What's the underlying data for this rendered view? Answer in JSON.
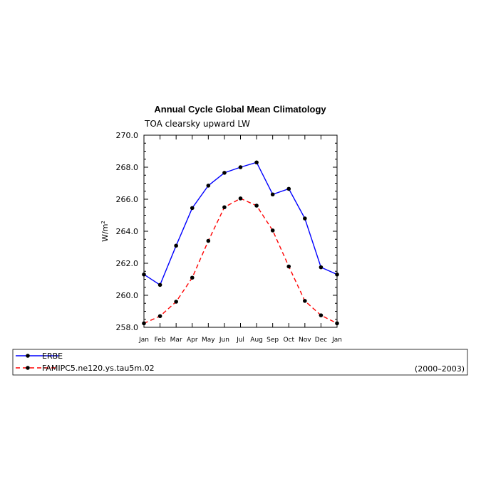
{
  "chart_data": {
    "type": "line",
    "title": "Annual Cycle Global Mean Climatology",
    "subtitle": "TOA clearsky upward LW",
    "ylabel": "W/m",
    "ylabel_sup": "2",
    "ylim": [
      258.0,
      270.0
    ],
    "yticks": [
      "258.0",
      "260.0",
      "262.0",
      "264.0",
      "266.0",
      "268.0",
      "270.0"
    ],
    "ytick_values": [
      258,
      260,
      262,
      264,
      266,
      268,
      270
    ],
    "categories": [
      "Jan",
      "Feb",
      "Mar",
      "Apr",
      "May",
      "Jun",
      "Jul",
      "Aug",
      "Sep",
      "Oct",
      "Nov",
      "Dec",
      "Jan"
    ],
    "series": [
      {
        "name": "ERBE",
        "color": "#0000ff",
        "dash": "solid",
        "values": [
          261.3,
          260.65,
          263.1,
          265.45,
          266.85,
          267.65,
          268.0,
          268.3,
          266.3,
          266.65,
          264.8,
          261.75,
          261.3
        ]
      },
      {
        "name": "FAMIPC5.ne120.ys.tau5m.02",
        "color": "#ff0000",
        "dash": "dashed",
        "values": [
          258.25,
          258.7,
          259.6,
          261.1,
          263.4,
          265.5,
          266.05,
          265.6,
          264.05,
          261.8,
          259.65,
          258.75,
          258.25
        ]
      }
    ],
    "grid": false,
    "legend": {
      "placement": "bottom",
      "period": "(2000–2003)"
    }
  }
}
